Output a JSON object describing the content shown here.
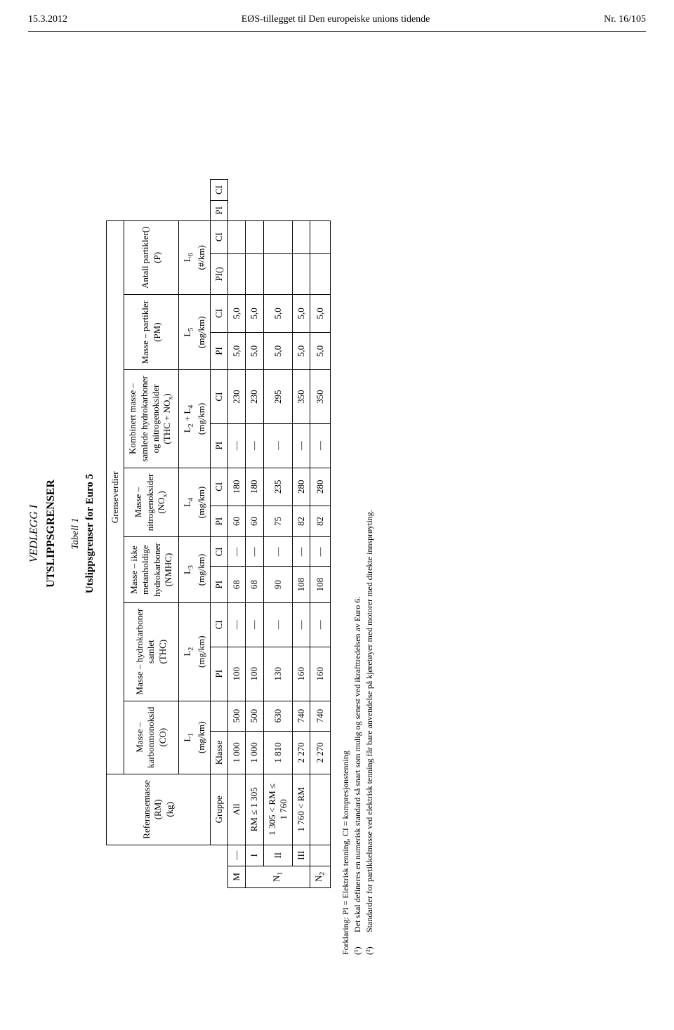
{
  "page": {
    "date": "15.3.2012",
    "journal": "EØS-tillegget til Den europeiske unions tidende",
    "pageno": "Nr. 16/105"
  },
  "annex": {
    "supertitle": "VEDLEGG I",
    "title": "UTSLIPPSGRENSER",
    "table_caption": "Tabell 1",
    "table_title": "Utslippsgrenser for Euro 5",
    "spanner": "Grenseverdier"
  },
  "refmass_header": "Referansemasse\n(RM)\n(kg)",
  "group_header": "Gruppe",
  "class_header": "Klasse",
  "pollutants": [
    {
      "name": "Masse –\nkarbonmonoksid\n(CO)",
      "unit_html": "L<span class='sub'>1</span><br>(mg/km)"
    },
    {
      "name": "Masse – hydrokarboner\nsamlet\n(THC)",
      "unit_html": "L<span class='sub'>2</span><br>(mg/km)"
    },
    {
      "name": "Masse – ikke\nmetanholdige\nhydrokarboner\n(NMHC)",
      "unit_html": "L<span class='sub'>3</span><br>(mg/km)"
    },
    {
      "name": "Masse –\nnitrogenoksider\n(NO_x)",
      "unit_html": "L<span class='sub'>4</span><br>(mg/km)"
    },
    {
      "name": "Kombinert masse –\nsamlede hydrokarboner\nog nitrogenoksider\n(THC + NO_x)",
      "unit_html": "L<span class='sub'>2</span> + L<span class='sub'>4</span><br>(mg/km)"
    },
    {
      "name": "Masse – partikler\n(PM)",
      "unit_html": "L<span class='sub'>5</span><br>(mg/km)"
    },
    {
      "name": "Antall partikler()\n(P)",
      "unit_html": "L<span class='sub'>6</span><br>(#/km)"
    }
  ],
  "sub_pi": "PI",
  "sub_ci": "CI",
  "pi_paren": "PI()",
  "rows": [
    {
      "group": "M",
      "klass": "—",
      "ref": "All",
      "vals": {
        "co_pi": "1 000",
        "co_ci": "500",
        "thc_pi": "100",
        "thc_ci": "—",
        "nmhc_pi": "68",
        "nmhc_ci": "—",
        "nox_pi": "60",
        "nox_ci": "180",
        "sum_pi": "—",
        "sum_ci": "230",
        "pm_pi": "5,0",
        "pm_ci": "5,0",
        "p_pi": "",
        "p_ci": ""
      }
    },
    {
      "group": "N₁",
      "klass": "I",
      "ref": "RM ≤ 1 305",
      "vals": {
        "co_pi": "1 000",
        "co_ci": "500",
        "thc_pi": "100",
        "thc_ci": "—",
        "nmhc_pi": "68",
        "nmhc_ci": "—",
        "nox_pi": "60",
        "nox_ci": "180",
        "sum_pi": "—",
        "sum_ci": "230",
        "pm_pi": "5,0",
        "pm_ci": "5,0",
        "p_pi": "",
        "p_ci": ""
      }
    },
    {
      "group": "",
      "klass": "II",
      "ref": "1 305 < RM ≤\n1 760",
      "vals": {
        "co_pi": "1 810",
        "co_ci": "630",
        "thc_pi": "130",
        "thc_ci": "—",
        "nmhc_pi": "90",
        "nmhc_ci": "—",
        "nox_pi": "75",
        "nox_ci": "235",
        "sum_pi": "—",
        "sum_ci": "295",
        "pm_pi": "5,0",
        "pm_ci": "5,0",
        "p_pi": "",
        "p_ci": ""
      }
    },
    {
      "group": "",
      "klass": "III",
      "ref": "1 760 < RM",
      "vals": {
        "co_pi": "2 270",
        "co_ci": "740",
        "thc_pi": "160",
        "thc_ci": "—",
        "nmhc_pi": "108",
        "nmhc_ci": "—",
        "nox_pi": "82",
        "nox_ci": "280",
        "sum_pi": "—",
        "sum_ci": "350",
        "pm_pi": "5,0",
        "pm_ci": "5,0",
        "p_pi": "",
        "p_ci": ""
      }
    },
    {
      "group": "N₂",
      "klass": "",
      "ref": "",
      "vals": {
        "co_pi": "2 270",
        "co_ci": "740",
        "thc_pi": "160",
        "thc_ci": "—",
        "nmhc_pi": "108",
        "nmhc_ci": "—",
        "nox_pi": "82",
        "nox_ci": "280",
        "sum_pi": "—",
        "sum_ci": "350",
        "pm_pi": "5,0",
        "pm_ci": "5,0",
        "p_pi": "",
        "p_ci": ""
      }
    }
  ],
  "footnotes": {
    "legend": "Forklaring: PI = Elektrisk tenning, CI = kompresjonstenning",
    "fn1_mark": "(¹)",
    "fn1": "Det skal defineres en numerisk standard så snart som mulig og senest ved ikrafttredelsen av Euro 6.",
    "fn2_mark": "(²)",
    "fn2": "Standarder for partikkelmasse ved elektrisk tenning får bare anvendelse på kjøretøyer med motorer med direkte innsprøyting."
  },
  "style": {
    "colors": {
      "text": "#000000",
      "background": "#ffffff",
      "border": "#000000"
    },
    "fonts": {
      "body_family": "Times New Roman",
      "body_size_pt": 10,
      "title_size_pt": 12
    }
  }
}
